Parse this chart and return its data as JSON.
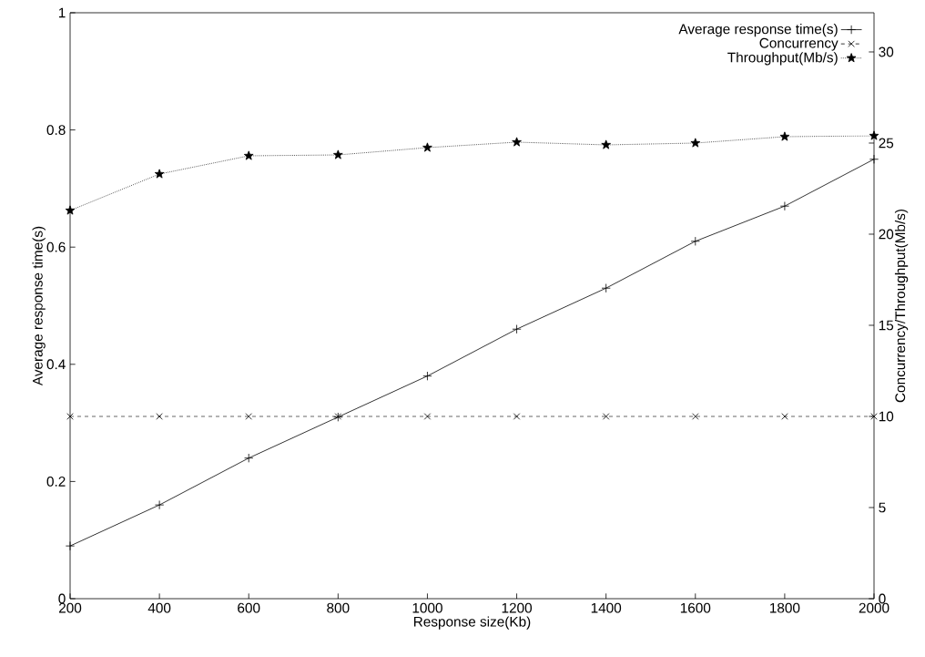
{
  "chart_data": {
    "type": "line",
    "xlabel": "Response size(Kb)",
    "ylabel": "Average response time(s)",
    "y2label": "Concurrency/Throughput(Mb/s)",
    "x": [
      200,
      400,
      600,
      800,
      1000,
      1200,
      1400,
      1600,
      1800,
      2000
    ],
    "series": [
      {
        "name": "Average response time(s)",
        "color": "#000000",
        "marker": "cross",
        "line_style": "solid",
        "values": [
          0.09,
          0.16,
          0.24,
          0.31,
          0.38,
          0.46,
          0.53,
          0.61,
          0.67,
          0.75
        ]
      },
      {
        "name": "Concurrency",
        "color": "#000000",
        "marker": "x",
        "line_style": "dashed",
        "axis": "y2",
        "values": [
          10.0,
          10.0,
          10.0,
          10.0,
          10.0,
          10.0,
          10.0,
          10.0,
          10.0,
          10.0
        ]
      },
      {
        "name": "Throughput(Mb/s)",
        "color": "#000000",
        "marker": "star",
        "line_style": "dotted",
        "axis": "y2",
        "values": [
          21.3,
          23.3,
          24.3,
          24.35,
          24.75,
          25.05,
          24.9,
          25.0,
          25.35,
          25.4
        ]
      }
    ],
    "xlim": [
      200,
      2000
    ],
    "xticks": [
      200,
      400,
      600,
      800,
      1000,
      1200,
      1400,
      1600,
      1800,
      2000
    ],
    "ylim": [
      0,
      1
    ],
    "yticks": [
      0,
      0.2,
      0.4,
      0.6,
      0.8,
      1
    ],
    "y2lim": [
      0,
      32.15
    ],
    "y2ticks": [
      0,
      5,
      10,
      15,
      20,
      25,
      30
    ],
    "grid": false,
    "legend": "top right"
  }
}
